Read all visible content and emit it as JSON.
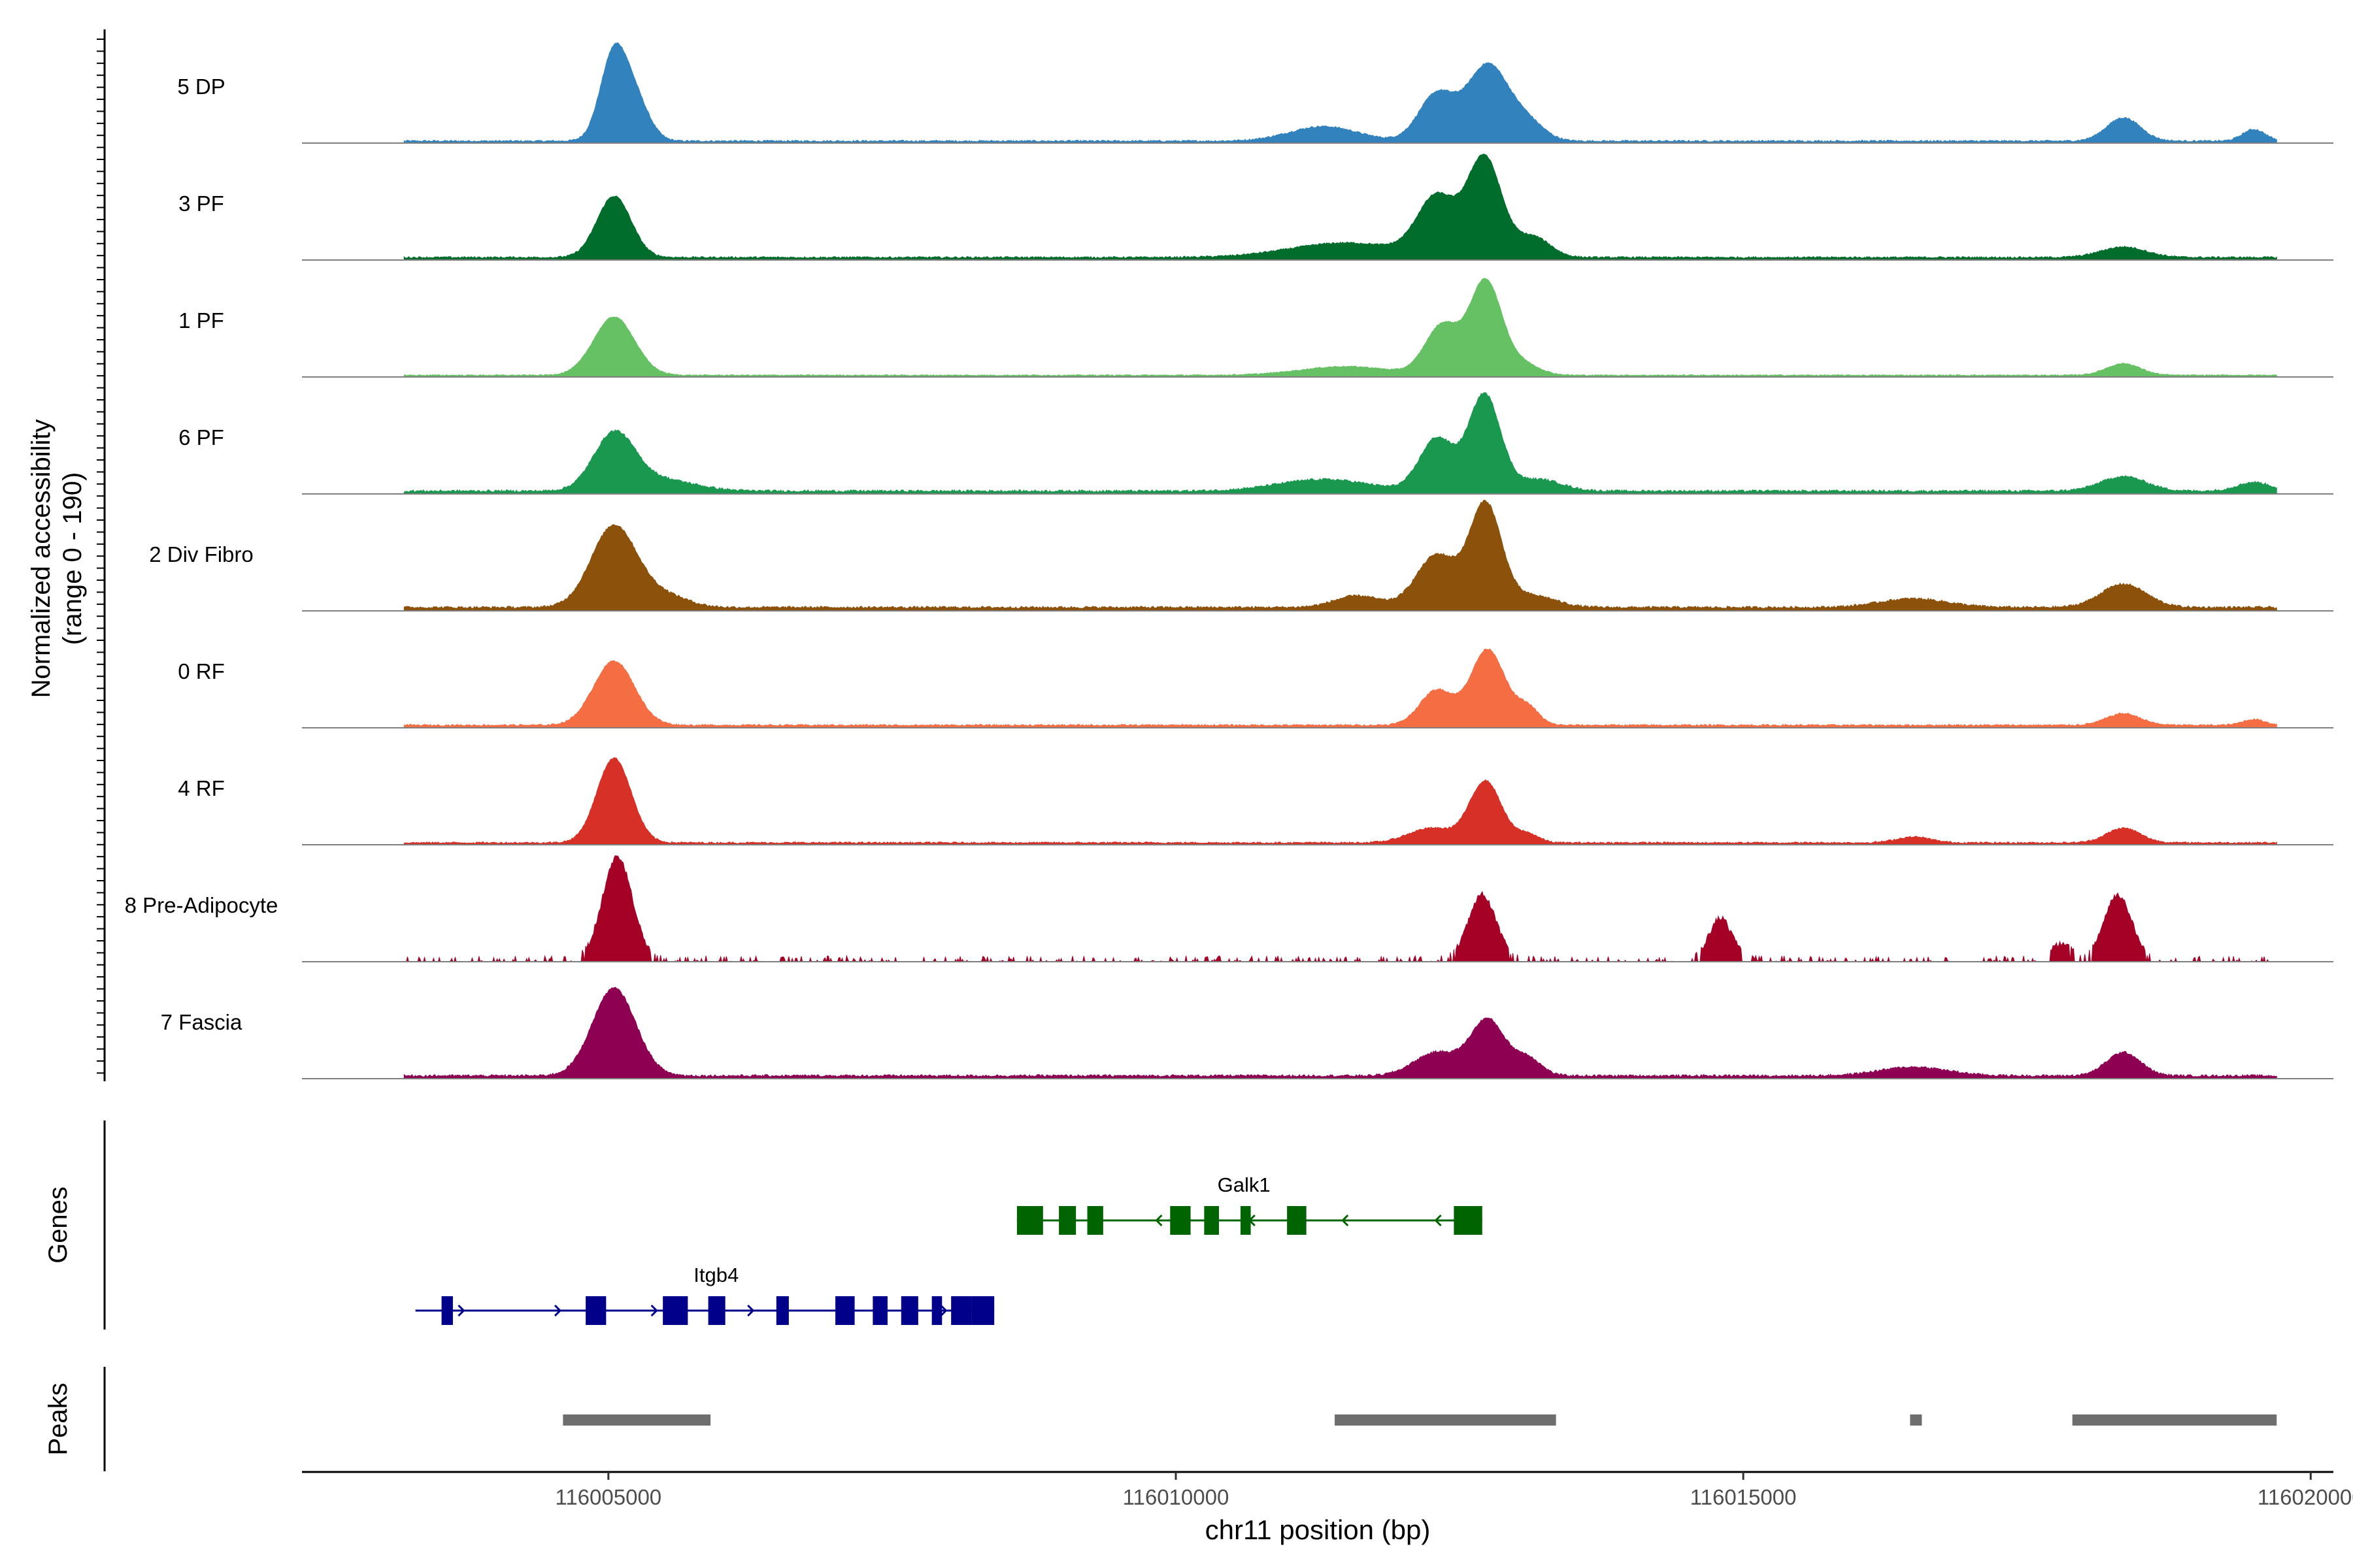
{
  "chart_data": {
    "type": "area",
    "title": "",
    "ylabel_line1": "Normalized accessibility",
    "ylabel_line2": "(range 0 - 190)",
    "xlabel": "chr11 position (bp)",
    "xlim": [
      116002300,
      116020200
    ],
    "ylim": [
      0,
      190
    ],
    "x_ticks": [
      {
        "value": 116005000,
        "label": "116005000"
      },
      {
        "value": 116010000,
        "label": "116010000"
      },
      {
        "value": 116015000,
        "label": "116015000"
      },
      {
        "value": 116020000,
        "label": "116020000"
      }
    ],
    "track_start": 116003200,
    "track_end": 116019700,
    "tracks": [
      {
        "name": "5 DP",
        "color": "#3182bd",
        "baseline": 2,
        "noise": 3,
        "peaks": [
          [
            116005050,
            150,
            120
          ],
          [
            116005250,
            60,
            120
          ],
          [
            116011300,
            25,
            300
          ],
          [
            116012300,
            80,
            160
          ],
          [
            116012750,
            130,
            180
          ],
          [
            116013100,
            30,
            150
          ],
          [
            116018350,
            40,
            150
          ],
          [
            116019500,
            20,
            100
          ]
        ]
      },
      {
        "name": "3 PF",
        "color": "#006d2c",
        "baseline": 3,
        "noise": 3,
        "peaks": [
          [
            116005050,
            105,
            150
          ],
          [
            116011500,
            25,
            500
          ],
          [
            116012300,
            100,
            170
          ],
          [
            116012720,
            170,
            150
          ],
          [
            116013150,
            35,
            150
          ],
          [
            116018350,
            18,
            200
          ]
        ]
      },
      {
        "name": "1 PF",
        "color": "#66c164",
        "baseline": 2,
        "noise": 2,
        "peaks": [
          [
            116005050,
            100,
            180
          ],
          [
            116011500,
            15,
            400
          ],
          [
            116012350,
            85,
            150
          ],
          [
            116012730,
            160,
            140
          ],
          [
            116013050,
            20,
            150
          ],
          [
            116018350,
            20,
            150
          ]
        ]
      },
      {
        "name": "6 PF",
        "color": "#1a9850",
        "baseline": 3,
        "noise": 4,
        "peaks": [
          [
            116005050,
            95,
            180
          ],
          [
            116005450,
            20,
            300
          ],
          [
            116011300,
            20,
            400
          ],
          [
            116012300,
            90,
            150
          ],
          [
            116012720,
            165,
            140
          ],
          [
            116013200,
            20,
            200
          ],
          [
            116018350,
            25,
            200
          ],
          [
            116019500,
            15,
            150
          ]
        ]
      },
      {
        "name": "2 Div Fibro",
        "color": "#8c510a",
        "baseline": 4,
        "noise": 4,
        "peaks": [
          [
            116005050,
            140,
            200
          ],
          [
            116005500,
            20,
            200
          ],
          [
            116011600,
            20,
            200
          ],
          [
            116012300,
            90,
            180
          ],
          [
            116012730,
            175,
            140
          ],
          [
            116013150,
            20,
            200
          ],
          [
            116016500,
            15,
            300
          ],
          [
            116018350,
            40,
            200
          ]
        ]
      },
      {
        "name": "0 RF",
        "color": "#f46d43",
        "baseline": 3,
        "noise": 3,
        "peaks": [
          [
            116005050,
            110,
            180
          ],
          [
            116012300,
            60,
            150
          ],
          [
            116012750,
            130,
            150
          ],
          [
            116013100,
            30,
            100
          ],
          [
            116018350,
            20,
            150
          ],
          [
            116019500,
            10,
            100
          ]
        ]
      },
      {
        "name": "4 RF",
        "color": "#d73027",
        "baseline": 2,
        "noise": 3,
        "peaks": [
          [
            116005050,
            145,
            150
          ],
          [
            116012250,
            25,
            200
          ],
          [
            116012730,
            105,
            140
          ],
          [
            116013100,
            15,
            100
          ],
          [
            116016500,
            10,
            150
          ],
          [
            116018350,
            25,
            150
          ]
        ]
      },
      {
        "name": "8 Pre-Adipocyte",
        "color": "#a50026",
        "baseline": 0,
        "noise": 10,
        "peaks": [
          [
            116005080,
            175,
            130
          ],
          [
            116012700,
            110,
            120
          ],
          [
            116014800,
            70,
            100
          ],
          [
            116018300,
            110,
            120
          ],
          [
            116017800,
            25,
            100
          ]
        ]
      },
      {
        "name": "7 Fascia",
        "color": "#8e0152",
        "baseline": 3,
        "noise": 4,
        "peaks": [
          [
            116005050,
            150,
            190
          ],
          [
            116012300,
            40,
            200
          ],
          [
            116012750,
            95,
            150
          ],
          [
            116013100,
            30,
            120
          ],
          [
            116016500,
            15,
            300
          ],
          [
            116018350,
            40,
            150
          ]
        ]
      }
    ],
    "genes_label": "Genes",
    "genes": [
      {
        "name": "Galk1",
        "strand": "-",
        "color": "#006400",
        "start": 116008600,
        "end": 116012700,
        "exons": [
          [
            116008600,
            116008830
          ],
          [
            116008970,
            116009120
          ],
          [
            116009220,
            116009360
          ],
          [
            116009950,
            116010130
          ],
          [
            116010250,
            116010380
          ],
          [
            116010570,
            116010660
          ],
          [
            116010980,
            116011150
          ],
          [
            116012450,
            116012700
          ]
        ]
      },
      {
        "name": "Itgb4",
        "strand": "+",
        "color": "#00008b",
        "start": 116003300,
        "end": 116008400,
        "exons": [
          [
            116003530,
            116003630
          ],
          [
            116004800,
            116004980
          ],
          [
            116005480,
            116005700
          ],
          [
            116005880,
            116006030
          ],
          [
            116006480,
            116006590
          ],
          [
            116007000,
            116007170
          ],
          [
            116007330,
            116007460
          ],
          [
            116007580,
            116007730
          ],
          [
            116007850,
            116007940
          ],
          [
            116008020,
            116008200
          ],
          [
            116008200,
            116008400
          ]
        ]
      }
    ],
    "peaks_label": "Peaks",
    "peak_regions": [
      [
        116004600,
        116005900
      ],
      [
        116011400,
        116013350
      ],
      [
        116016470,
        116016560
      ],
      [
        116017900,
        116019700
      ]
    ]
  }
}
